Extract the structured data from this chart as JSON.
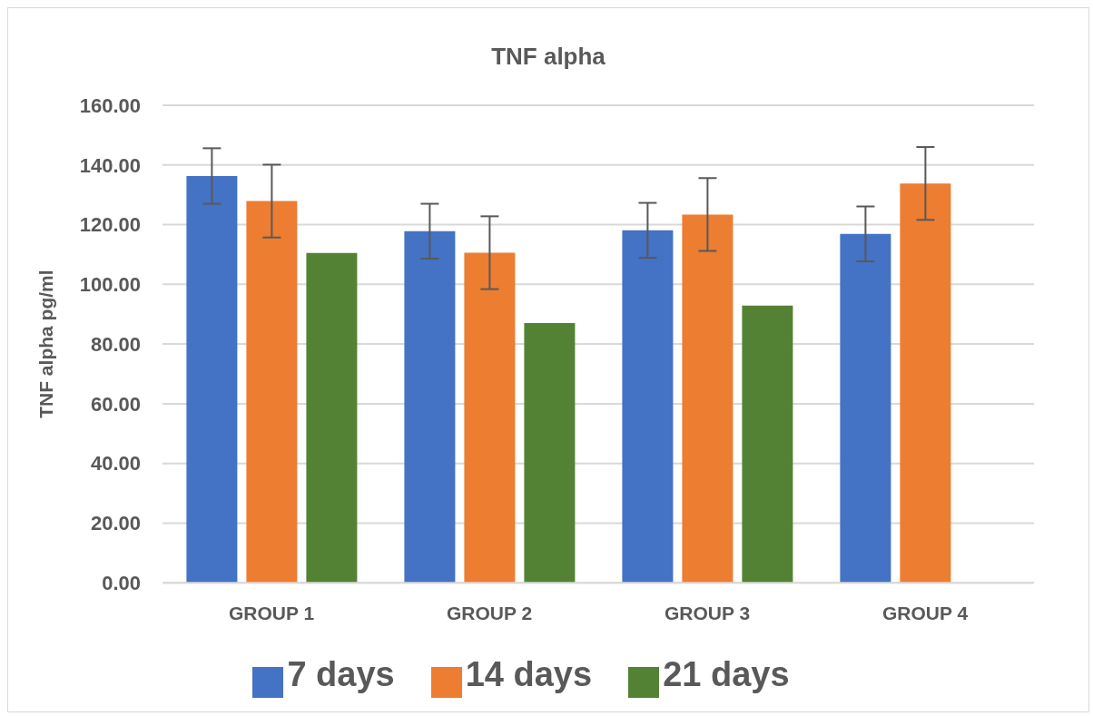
{
  "chart_data": {
    "type": "bar",
    "title": "TNF alpha",
    "ylabel": "TNF alpha  pg/ml",
    "categories": [
      "GROUP 1",
      "GROUP 2",
      "GROUP 3",
      "GROUP 4"
    ],
    "series": [
      {
        "name": "7 days",
        "color": "#4472c4",
        "values": [
          136.3,
          117.8,
          118.1,
          116.9
        ],
        "errors": [
          9.3,
          9.2,
          9.2,
          9.2
        ]
      },
      {
        "name": "14 days",
        "color": "#ed7d31",
        "values": [
          127.9,
          110.6,
          123.4,
          133.8
        ],
        "errors": [
          12.2,
          12.2,
          12.2,
          12.2
        ]
      },
      {
        "name": "21 days",
        "color": "#548235",
        "values": [
          110.5,
          87,
          92.9,
          null
        ],
        "errors": [
          null,
          null,
          null,
          null
        ]
      }
    ],
    "ylim": [
      0,
      160
    ],
    "yticks": [
      {
        "value": 0,
        "label": "0.00"
      },
      {
        "value": 20,
        "label": "20.00"
      },
      {
        "value": 40,
        "label": "40.00"
      },
      {
        "value": 60,
        "label": "60.00"
      },
      {
        "value": 80,
        "label": "80.00"
      },
      {
        "value": 100,
        "label": "100.00"
      },
      {
        "value": 120,
        "label": "120.00"
      },
      {
        "value": 140,
        "label": "140.00"
      },
      {
        "value": 160,
        "label": "160.00"
      }
    ],
    "grid": "y",
    "legend": "bottom"
  }
}
